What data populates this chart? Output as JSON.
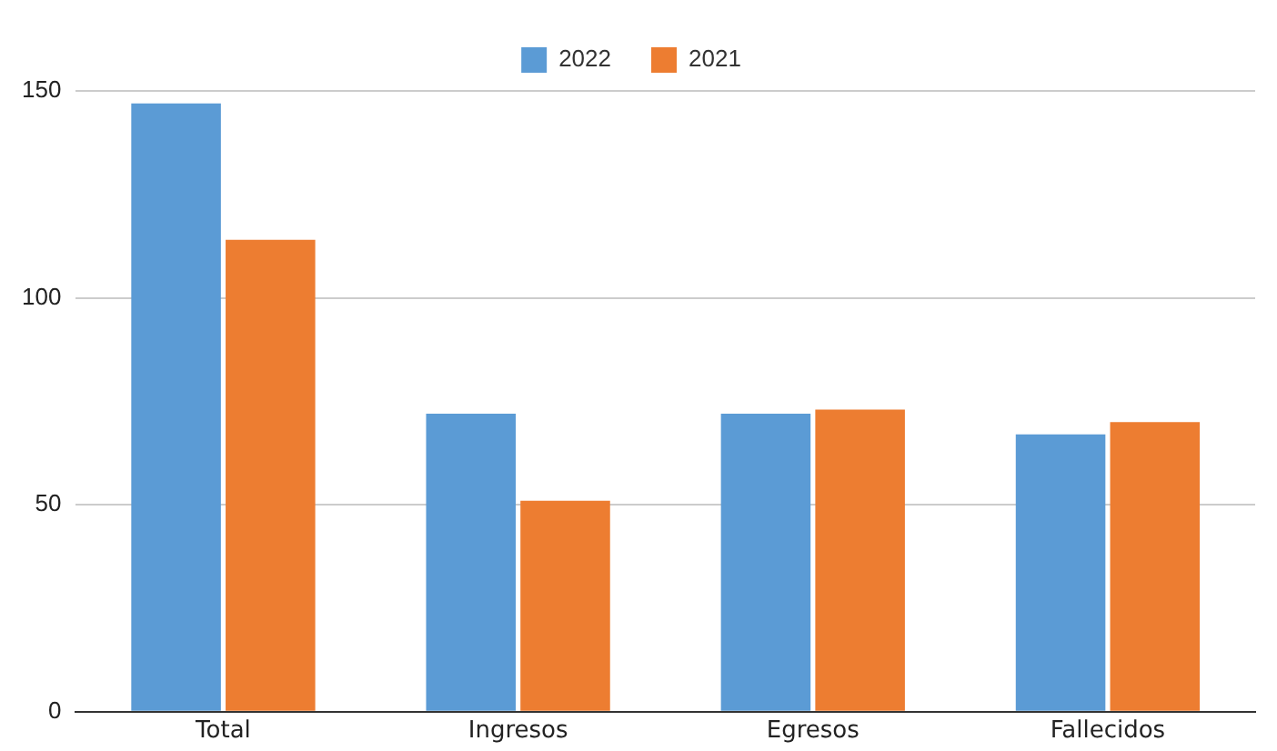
{
  "chart_data": {
    "type": "bar",
    "categories": [
      "Total",
      "Ingresos",
      "Egresos",
      "Fallecidos"
    ],
    "series": [
      {
        "name": "2022",
        "color": "#5b9bd5",
        "values": [
          147,
          72,
          72,
          67
        ]
      },
      {
        "name": "2021",
        "color": "#ed7d31",
        "values": [
          114,
          51,
          73,
          70
        ]
      }
    ],
    "ylim": [
      0,
      150
    ],
    "yticks": [
      0,
      50,
      100,
      150
    ],
    "grid": "y",
    "legend": "top"
  }
}
